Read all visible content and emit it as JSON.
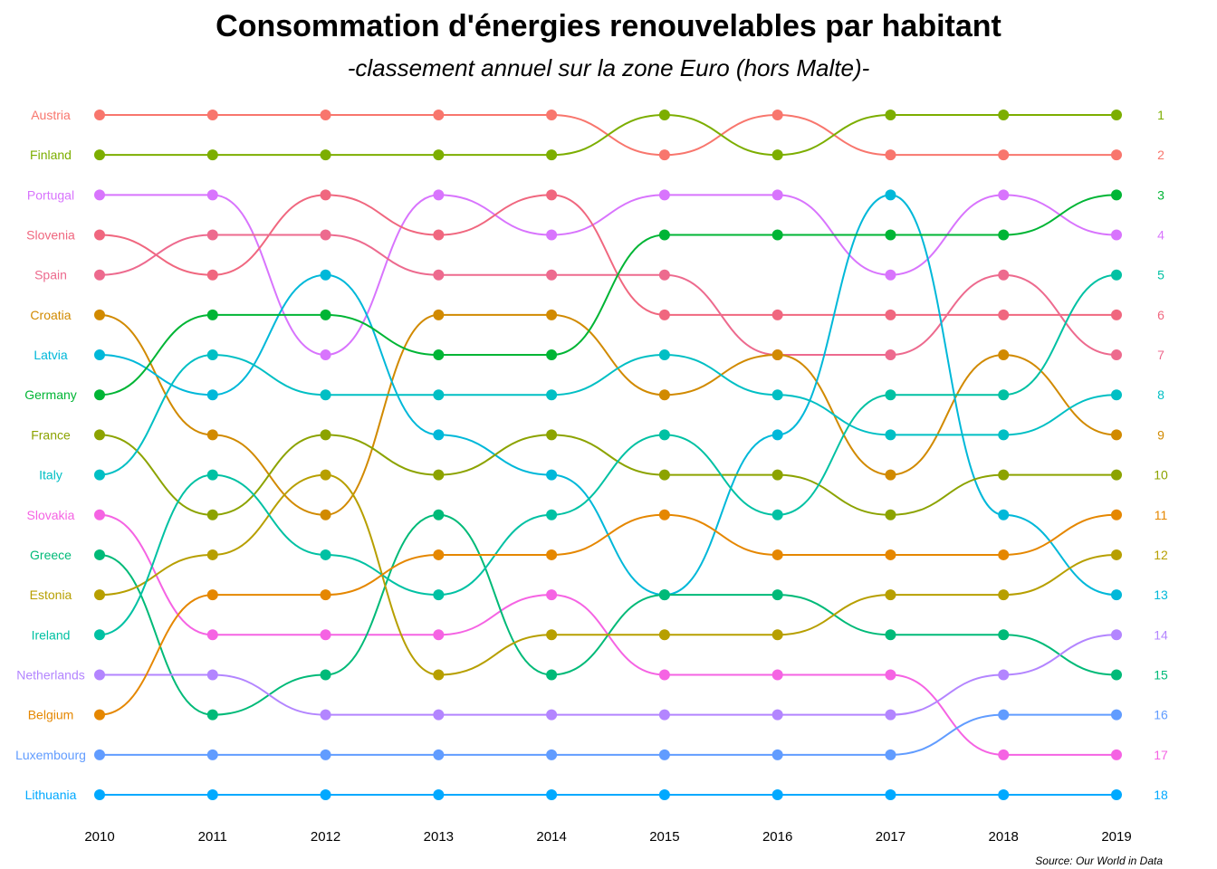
{
  "title": "Consommation d'énergies renouvelables par habitant",
  "subtitle": "-classement annuel sur la zone Euro (hors Malte)-",
  "source": "Source: Our World in Data",
  "chart_data": {
    "type": "line",
    "x": [
      2010,
      2011,
      2012,
      2013,
      2014,
      2015,
      2016,
      2017,
      2018,
      2019
    ],
    "y_reversed": true,
    "ylim": [
      1,
      18
    ],
    "grid": false,
    "legend": "none",
    "right_ranks": [
      "1",
      "2",
      "3",
      "4",
      "5",
      "6",
      "7",
      "8",
      "9",
      "10",
      "11",
      "12",
      "13",
      "14",
      "15",
      "16",
      "17",
      "18"
    ],
    "series": [
      {
        "name": "Austria",
        "color": "#F8766D",
        "ranks": [
          1,
          1,
          1,
          1,
          1,
          2,
          1,
          2,
          2,
          2
        ]
      },
      {
        "name": "Finland",
        "color": "#7CAE00",
        "ranks": [
          2,
          2,
          2,
          2,
          2,
          1,
          2,
          1,
          1,
          1
        ]
      },
      {
        "name": "Portugal",
        "color": "#D874FD",
        "ranks": [
          3,
          3,
          7,
          3,
          4,
          3,
          3,
          5,
          3,
          4
        ]
      },
      {
        "name": "Slovenia",
        "color": "#F0677F",
        "ranks": [
          4,
          5,
          3,
          4,
          3,
          6,
          6,
          6,
          6,
          6
        ]
      },
      {
        "name": "Spain",
        "color": "#ED6A8E",
        "ranks": [
          5,
          4,
          4,
          5,
          5,
          5,
          7,
          7,
          5,
          7
        ]
      },
      {
        "name": "Croatia",
        "color": "#D18A00",
        "ranks": [
          6,
          9,
          11,
          6,
          6,
          8,
          7,
          10,
          7,
          9
        ]
      },
      {
        "name": "Latvia",
        "color": "#00B8D9",
        "ranks": [
          7,
          8,
          5,
          9,
          10,
          13,
          9,
          3,
          11,
          13
        ]
      },
      {
        "name": "Germany",
        "color": "#00B535",
        "ranks": [
          8,
          6,
          6,
          7,
          7,
          4,
          4,
          4,
          4,
          3
        ]
      },
      {
        "name": "France",
        "color": "#8CA300",
        "ranks": [
          9,
          11,
          9,
          10,
          9,
          10,
          10,
          11,
          10,
          10
        ]
      },
      {
        "name": "Italy",
        "color": "#00BFC4",
        "ranks": [
          10,
          7,
          8,
          8,
          8,
          7,
          8,
          9,
          9,
          8
        ]
      },
      {
        "name": "Slovakia",
        "color": "#F563E3",
        "ranks": [
          11,
          14,
          14,
          14,
          13,
          15,
          15,
          15,
          17,
          17
        ]
      },
      {
        "name": "Greece",
        "color": "#00BA78",
        "ranks": [
          12,
          16,
          15,
          11,
          15,
          13,
          13,
          14,
          14,
          15
        ]
      },
      {
        "name": "Estonia",
        "color": "#B79F00",
        "ranks": [
          13,
          12,
          10,
          15,
          14,
          14,
          14,
          13,
          13,
          12
        ]
      },
      {
        "name": "Ireland",
        "color": "#00C1A3",
        "ranks": [
          14,
          10,
          12,
          13,
          11,
          9,
          11,
          8,
          8,
          5
        ]
      },
      {
        "name": "Netherlands",
        "color": "#B385FF",
        "ranks": [
          15,
          15,
          16,
          16,
          16,
          16,
          16,
          16,
          15,
          14
        ]
      },
      {
        "name": "Belgium",
        "color": "#E58700",
        "ranks": [
          16,
          13,
          13,
          12,
          12,
          11,
          12,
          12,
          12,
          11
        ]
      },
      {
        "name": "Luxembourg",
        "color": "#619CFF",
        "ranks": [
          17,
          17,
          17,
          17,
          17,
          17,
          17,
          17,
          16,
          16
        ]
      },
      {
        "name": "Lithuania",
        "color": "#00A9FF",
        "ranks": [
          18,
          18,
          18,
          18,
          18,
          18,
          18,
          18,
          18,
          18
        ]
      }
    ]
  }
}
